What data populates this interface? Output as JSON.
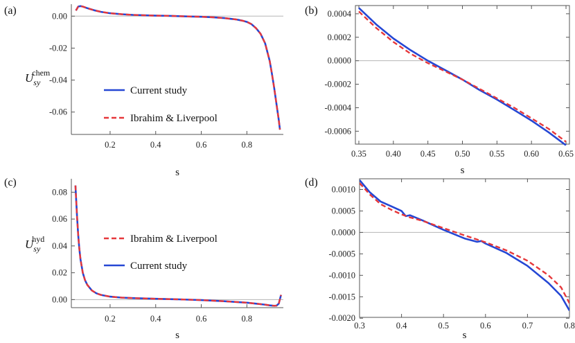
{
  "colors": {
    "current": "#2547d4",
    "ibrahim": "#e6373a",
    "zero_line": "#b5b5b5",
    "frame": "#555555"
  },
  "chart_data": [
    {
      "panel": "(a)",
      "type": "line",
      "xlabel": "s",
      "ylabel": {
        "base": "U",
        "sub": "sy",
        "sup": "chem"
      },
      "xlim": [
        0.03,
        0.96
      ],
      "ylim": [
        -0.074,
        0.0075
      ],
      "xticks": [
        "0.2",
        "0.4",
        "0.6",
        "0.8"
      ],
      "xtick_values": [
        0.2,
        0.4,
        0.6,
        0.8
      ],
      "yticks": [
        "0.00",
        "-0.02",
        "-0.04",
        "-0.06"
      ],
      "ytick_values": [
        0,
        -0.02,
        -0.04,
        -0.06
      ],
      "legend_placement": "lower-left",
      "legend": [
        {
          "label": "Current study",
          "style": "solid"
        },
        {
          "label": "Ibrahim & Liverpool",
          "style": "dashed"
        }
      ],
      "series": [
        {
          "name": "Current study",
          "style": "solid",
          "x": [
            0.05,
            0.06,
            0.07,
            0.08,
            0.1,
            0.13,
            0.16,
            0.2,
            0.25,
            0.3,
            0.35,
            0.4,
            0.45,
            0.5,
            0.55,
            0.6,
            0.65,
            0.7,
            0.75,
            0.78,
            0.8,
            0.82,
            0.84,
            0.86,
            0.88,
            0.9,
            0.91,
            0.92,
            0.93,
            0.94,
            0.945
          ],
          "y": [
            0.0035,
            0.006,
            0.0063,
            0.006,
            0.005,
            0.0037,
            0.0027,
            0.0018,
            0.0012,
            0.0008,
            0.0005,
            0.0003,
            0.0002,
            0.0,
            -0.0002,
            -0.0004,
            -0.0007,
            -0.0012,
            -0.002,
            -0.0028,
            -0.0036,
            -0.005,
            -0.0075,
            -0.011,
            -0.017,
            -0.028,
            -0.036,
            -0.045,
            -0.055,
            -0.065,
            -0.071
          ]
        },
        {
          "name": "Ibrahim & Liverpool",
          "style": "dashed",
          "x": [
            0.05,
            0.06,
            0.07,
            0.08,
            0.1,
            0.13,
            0.16,
            0.2,
            0.25,
            0.3,
            0.35,
            0.4,
            0.45,
            0.5,
            0.55,
            0.6,
            0.65,
            0.7,
            0.75,
            0.78,
            0.8,
            0.82,
            0.84,
            0.86,
            0.88,
            0.9,
            0.91,
            0.92,
            0.93,
            0.94,
            0.945
          ],
          "y": [
            0.0035,
            0.006,
            0.0063,
            0.006,
            0.005,
            0.0037,
            0.0027,
            0.0018,
            0.0012,
            0.0008,
            0.0005,
            0.0003,
            0.0002,
            0.0,
            -0.0002,
            -0.0004,
            -0.0007,
            -0.0012,
            -0.002,
            -0.0028,
            -0.0036,
            -0.005,
            -0.0075,
            -0.011,
            -0.017,
            -0.028,
            -0.036,
            -0.045,
            -0.055,
            -0.065,
            -0.071
          ]
        }
      ]
    },
    {
      "panel": "(b)",
      "type": "line",
      "xlabel": "s",
      "ylabel": null,
      "xlim": [
        0.345,
        0.655
      ],
      "ylim": [
        -0.00071,
        0.00047
      ],
      "xticks": [
        "0.35",
        "0.40",
        "0.45",
        "0.50",
        "0.55",
        "0.60",
        "0.65"
      ],
      "xtick_values": [
        0.35,
        0.4,
        0.45,
        0.5,
        0.55,
        0.6,
        0.65
      ],
      "yticks": [
        "0.0004",
        "0.0002",
        "0.0000",
        "-0.0002",
        "-0.0004",
        "-0.0006"
      ],
      "ytick_values": [
        0.0004,
        0.0002,
        0.0,
        -0.0002,
        -0.0004,
        -0.0006
      ],
      "legend": [],
      "series": [
        {
          "name": "Current study",
          "style": "solid",
          "x": [
            0.35,
            0.375,
            0.4,
            0.425,
            0.45,
            0.475,
            0.5,
            0.525,
            0.55,
            0.575,
            0.6,
            0.625,
            0.65
          ],
          "y": [
            0.00045,
            0.00031,
            0.00019,
            9e-05,
            0.0,
            -8e-05,
            -0.00016,
            -0.00025,
            -0.00033,
            -0.00042,
            -0.00051,
            -0.00061,
            -0.00072
          ]
        },
        {
          "name": "Ibrahim & Liverpool",
          "style": "dashed",
          "x": [
            0.35,
            0.375,
            0.4,
            0.425,
            0.45,
            0.475,
            0.5,
            0.525,
            0.55,
            0.575,
            0.6,
            0.625,
            0.65
          ],
          "y": [
            0.00042,
            0.00028,
            0.00016,
            6e-05,
            -2e-05,
            -9e-05,
            -0.00016,
            -0.00024,
            -0.00032,
            -0.0004,
            -0.00049,
            -0.00058,
            -0.00069
          ]
        }
      ]
    },
    {
      "panel": "(c)",
      "type": "line",
      "xlabel": "s",
      "ylabel": {
        "base": "U",
        "sub": "sy",
        "sup": "hyd"
      },
      "xlim": [
        0.03,
        0.96
      ],
      "ylim": [
        -0.006,
        0.09
      ],
      "xticks": [
        "0.2",
        "0.4",
        "0.6",
        "0.8"
      ],
      "xtick_values": [
        0.2,
        0.4,
        0.6,
        0.8
      ],
      "yticks": [
        "0.08",
        "0.06",
        "0.04",
        "0.02",
        "0.00"
      ],
      "ytick_values": [
        0.08,
        0.06,
        0.04,
        0.02,
        0.0
      ],
      "legend_placement": "center",
      "legend": [
        {
          "label": "Ibrahim & Liverpool",
          "style": "dashed"
        },
        {
          "label": "Current study",
          "style": "solid"
        }
      ],
      "series": [
        {
          "name": "Current study",
          "style": "solid",
          "x": [
            0.048,
            0.05,
            0.055,
            0.06,
            0.065,
            0.07,
            0.08,
            0.09,
            0.1,
            0.12,
            0.14,
            0.16,
            0.2,
            0.25,
            0.3,
            0.4,
            0.5,
            0.6,
            0.7,
            0.8,
            0.85,
            0.88,
            0.9,
            0.92,
            0.93,
            0.94,
            0.95
          ],
          "y": [
            0.085,
            0.078,
            0.062,
            0.048,
            0.038,
            0.03,
            0.02,
            0.0145,
            0.011,
            0.0068,
            0.0047,
            0.0035,
            0.0022,
            0.0015,
            0.0011,
            0.0006,
            0.0002,
            -0.0004,
            -0.0012,
            -0.0023,
            -0.0032,
            -0.0038,
            -0.0043,
            -0.0046,
            -0.0045,
            -0.003,
            0.0035
          ]
        },
        {
          "name": "Ibrahim & Liverpool",
          "style": "dashed",
          "x": [
            0.048,
            0.05,
            0.055,
            0.06,
            0.065,
            0.07,
            0.08,
            0.09,
            0.1,
            0.12,
            0.14,
            0.16,
            0.2,
            0.25,
            0.3,
            0.4,
            0.5,
            0.6,
            0.7,
            0.8,
            0.85,
            0.88,
            0.9,
            0.92,
            0.93,
            0.94,
            0.95
          ],
          "y": [
            0.085,
            0.078,
            0.062,
            0.048,
            0.038,
            0.03,
            0.02,
            0.0145,
            0.011,
            0.0068,
            0.0047,
            0.0035,
            0.0022,
            0.0015,
            0.0011,
            0.0006,
            0.0002,
            -0.0004,
            -0.0012,
            -0.0023,
            -0.0032,
            -0.0038,
            -0.0043,
            -0.0046,
            -0.0045,
            -0.003,
            0.0035
          ]
        }
      ]
    },
    {
      "panel": "(d)",
      "type": "line",
      "xlabel": "s",
      "ylabel": null,
      "xlim": [
        0.3,
        0.8
      ],
      "ylim": [
        -0.00198,
        0.00125
      ],
      "xticks": [
        "0.3",
        "0.4",
        "0.5",
        "0.6",
        "0.7",
        "0.8"
      ],
      "xtick_values": [
        0.3,
        0.4,
        0.5,
        0.6,
        0.7,
        0.8
      ],
      "yticks": [
        "0.0010",
        "0.0005",
        "0.0000",
        "-0.0005",
        "-0.0010",
        "-0.0015",
        "-0.0020"
      ],
      "ytick_values": [
        0.001,
        0.0005,
        0.0,
        -0.0005,
        -0.001,
        -0.0015,
        -0.002
      ],
      "legend": [],
      "series": [
        {
          "name": "Current study",
          "style": "solid",
          "x": [
            0.3,
            0.325,
            0.35,
            0.375,
            0.4,
            0.41,
            0.42,
            0.45,
            0.5,
            0.55,
            0.58,
            0.59,
            0.6,
            0.65,
            0.7,
            0.75,
            0.78,
            0.8
          ],
          "y": [
            0.00122,
            0.00093,
            0.00072,
            0.00061,
            0.0005,
            0.00038,
            0.0004,
            0.00028,
            6e-05,
            -0.00014,
            -0.00022,
            -0.0002,
            -0.00026,
            -0.00048,
            -0.00078,
            -0.00118,
            -0.00148,
            -0.00182
          ]
        },
        {
          "name": "Ibrahim & Liverpool",
          "style": "dashed",
          "x": [
            0.3,
            0.325,
            0.35,
            0.375,
            0.4,
            0.42,
            0.45,
            0.5,
            0.55,
            0.6,
            0.65,
            0.7,
            0.75,
            0.78,
            0.8
          ],
          "y": [
            0.00115,
            0.00088,
            0.00066,
            0.00053,
            0.00042,
            0.00035,
            0.00027,
            0.0001,
            -7e-05,
            -0.00023,
            -0.00042,
            -0.00066,
            -0.001,
            -0.00128,
            -0.00165
          ]
        }
      ]
    }
  ]
}
